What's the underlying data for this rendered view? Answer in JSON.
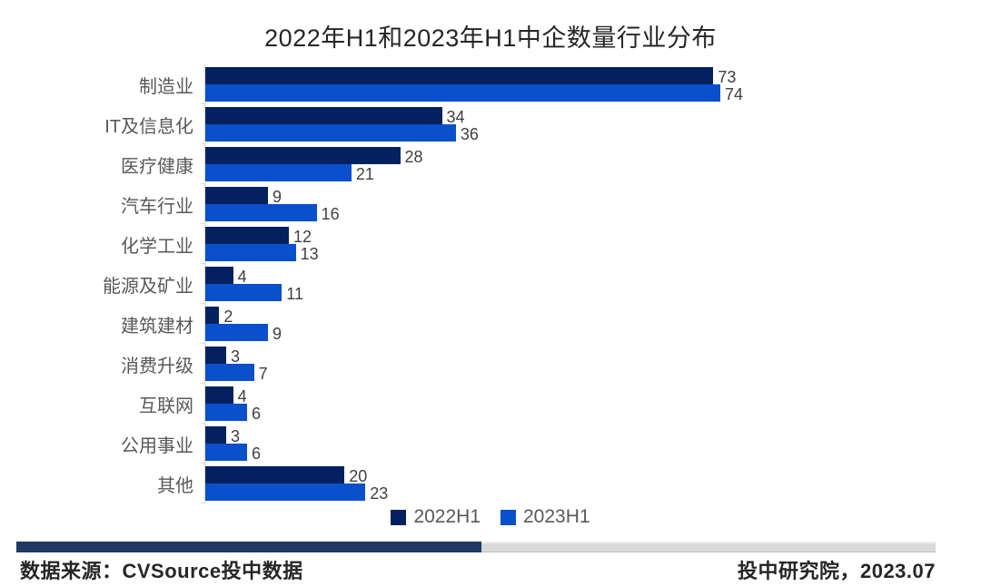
{
  "title": "2022年H1和2023年H1中企数量行业分布",
  "chart_data": {
    "type": "bar",
    "orientation": "horizontal",
    "title": "2022年H1和2023年H1中企数量行业分布",
    "categories": [
      "制造业",
      "IT及信息化",
      "医疗健康",
      "汽车行业",
      "化学工业",
      "能源及矿业",
      "建筑建材",
      "消费升级",
      "互联网",
      "公用事业",
      "其他"
    ],
    "series": [
      {
        "name": "2022H1",
        "color": "#03215E",
        "values": [
          73,
          34,
          28,
          9,
          12,
          4,
          2,
          3,
          4,
          3,
          20
        ]
      },
      {
        "name": "2023H1",
        "color": "#0A50CB",
        "values": [
          74,
          36,
          21,
          16,
          13,
          11,
          9,
          7,
          6,
          6,
          23
        ]
      }
    ],
    "xlim": [
      0,
      80
    ],
    "grid": false,
    "value_labels": true,
    "legend_position": "bottom-center",
    "axis_line_color": "#D9D9D9",
    "category_label_color": "#595959",
    "value_label_color": "#404040"
  },
  "footer": {
    "source": "数据来源：CVSource投中数据",
    "credit": "投中研究院，2023.07",
    "divider_left_color": "#1F3864",
    "divider_right_color": "#D9D9D9"
  }
}
